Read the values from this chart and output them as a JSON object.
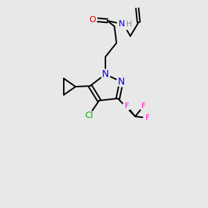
{
  "bg_color": "#e8e8e8",
  "bond_color": "#000000",
  "bond_lw": 1.5,
  "atom_colors": {
    "N": "#0000ff",
    "O": "#dd0000",
    "F": "#ff00cc",
    "Cl": "#00aa00",
    "C": "#000000",
    "H": "#888888"
  },
  "font_size": 9,
  "font_size_small": 8
}
